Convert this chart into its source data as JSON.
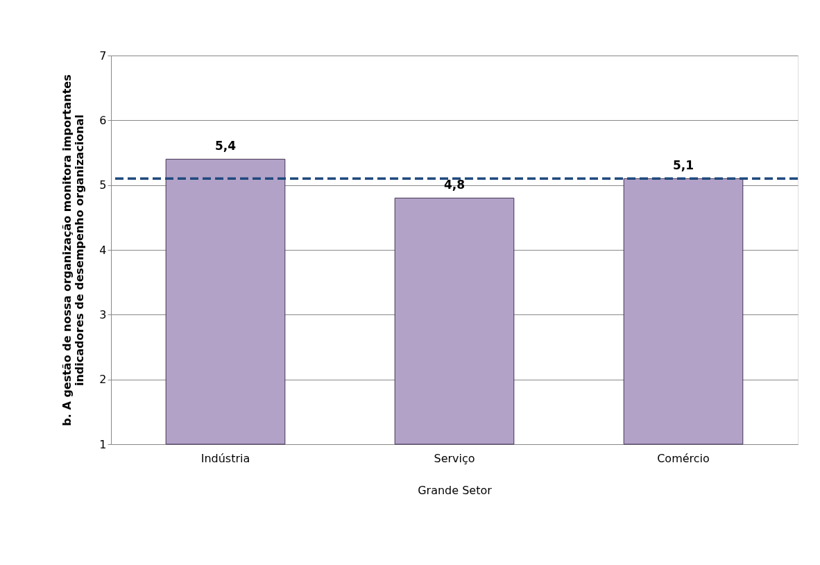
{
  "chart_data": {
    "type": "bar",
    "xlabel": "Grande Setor",
    "ylabel": "b. A gestão de nossa organização monitora importantes\nindicadores de desempenho organizacional",
    "categories": [
      "Indústria",
      "Serviço",
      "Comércio"
    ],
    "values": [
      5.4,
      4.8,
      5.1
    ],
    "value_labels": [
      "5,4",
      "4,8",
      "5,1"
    ],
    "color": "#b3a2c7",
    "ylim": [
      1,
      7
    ],
    "yticks": [
      1,
      2,
      3,
      4,
      5,
      6,
      7
    ],
    "grid": "y",
    "ref_lines": [
      {
        "axis": "y",
        "value": 5.1,
        "color": "#1f497d",
        "line_style": "dashed"
      }
    ]
  }
}
